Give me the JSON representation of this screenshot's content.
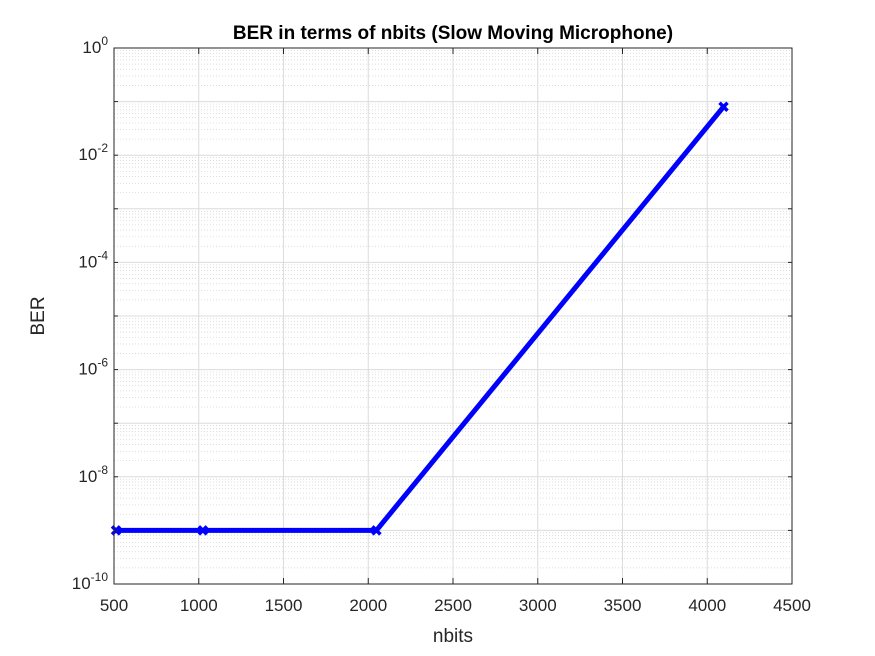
{
  "chart_data": {
    "type": "line",
    "title": "BER in terms of nbits (Slow Moving Microphone)",
    "xlabel": "nbits",
    "ylabel": "BER",
    "xlim": [
      500,
      4500
    ],
    "ylim": [
      1e-10,
      1
    ],
    "yscale": "log",
    "grid": true,
    "minor_grid": true,
    "x_ticks": [
      500,
      1000,
      1500,
      2000,
      2500,
      3000,
      3500,
      4000,
      4500
    ],
    "y_ticks": [
      {
        "base": "10",
        "exp": "-10",
        "value": 1e-10
      },
      {
        "base": "10",
        "exp": "-8",
        "value": 1e-08
      },
      {
        "base": "10",
        "exp": "-6",
        "value": 1e-06
      },
      {
        "base": "10",
        "exp": "-4",
        "value": 0.0001
      },
      {
        "base": "10",
        "exp": "-2",
        "value": 0.01
      },
      {
        "base": "10",
        "exp": "0",
        "value": 1
      }
    ],
    "series": [
      {
        "color": "#0000ff",
        "marker": "x",
        "x": [
          512,
          1024,
          2048,
          4096
        ],
        "y": [
          1e-09,
          1e-09,
          1e-09,
          0.08
        ]
      }
    ]
  }
}
